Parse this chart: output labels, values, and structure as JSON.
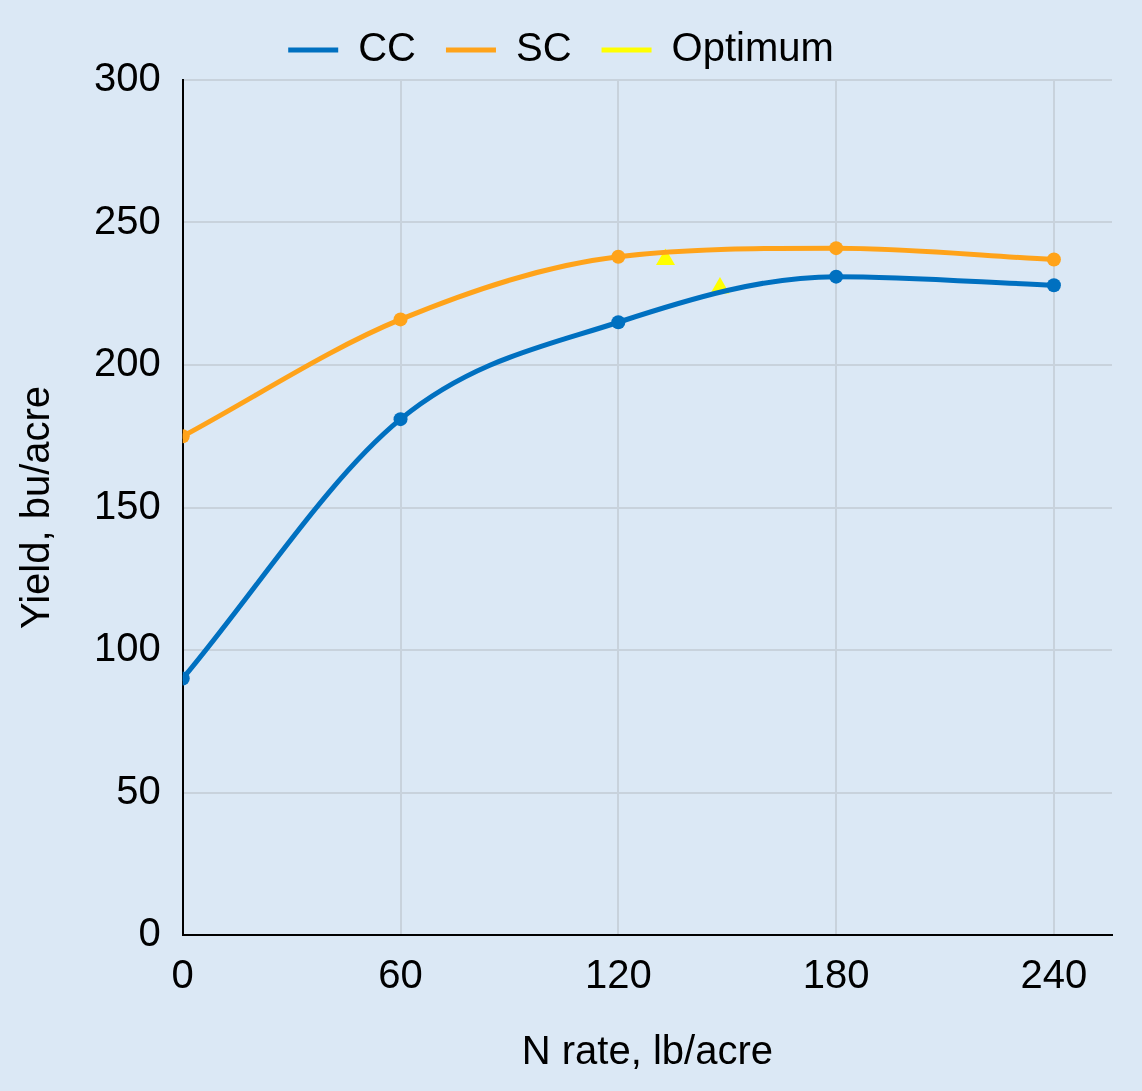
{
  "chart_data": {
    "type": "line",
    "xlabel": "N rate, lb/acre",
    "ylabel": "Yield, bu/acre",
    "xlim": [
      0,
      256
    ],
    "xticks": [
      0,
      60,
      120,
      180,
      240
    ],
    "ylim": [
      0,
      300
    ],
    "yticks": [
      0,
      50,
      100,
      150,
      200,
      250,
      300
    ],
    "grid": true,
    "legend": "top",
    "series": [
      {
        "name": "CC",
        "color": "#0070c0",
        "marker": "circle",
        "x": [
          0,
          60,
          120,
          180,
          240
        ],
        "values": [
          90,
          181,
          215,
          231,
          228
        ]
      },
      {
        "name": "SC",
        "color": "#ffa31a",
        "marker": "circle",
        "x": [
          0,
          60,
          120,
          180,
          240
        ],
        "values": [
          175,
          216,
          238,
          241,
          237
        ]
      },
      {
        "name": "Optimum",
        "type": "scatter",
        "color": "#ffff00",
        "marker": "triangle",
        "x": [
          133,
          148
        ],
        "values": [
          237,
          227
        ]
      }
    ]
  }
}
